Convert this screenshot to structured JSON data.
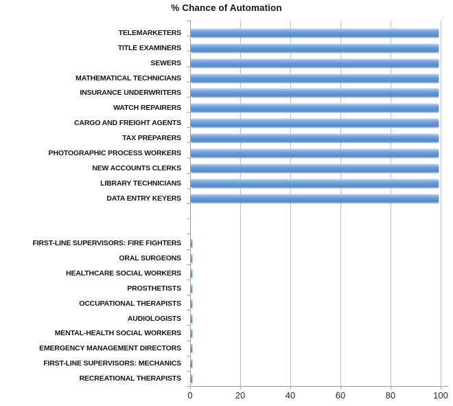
{
  "chart_data": {
    "type": "bar",
    "orientation": "horizontal",
    "title": "% Chance of Automation",
    "xlabel": "",
    "ylabel": "",
    "xlim": [
      0,
      100
    ],
    "xticks": [
      0,
      20,
      40,
      60,
      80,
      100
    ],
    "grid": "vertical-gridlines",
    "legend": "none",
    "gap_rows_between_groups": 2,
    "groups": [
      {
        "name": "high-automation-risk",
        "categories": [
          "TELEMARKETERS",
          "TITLE EXAMINERS",
          "SEWERS",
          "MATHEMATICAL TECHNICIANS",
          "INSURANCE UNDERWRITERS",
          "WATCH REPAIRERS",
          "CARGO AND FREIGHT AGENTS",
          "TAX PREPARERS",
          "PHOTOGRAPHIC PROCESS WORKERS",
          "NEW ACCOUNTS CLERKS",
          "LIBRARY TECHNICIANS",
          "DATA ENTRY KEYERS"
        ],
        "values": [
          99,
          99,
          99,
          99,
          99,
          99,
          99,
          99,
          99,
          99,
          99,
          99
        ]
      },
      {
        "name": "low-automation-risk",
        "categories": [
          "FIRST-LINE SUPERVISORS: FIRE FIGHTERS",
          "ORAL SURGEONS",
          "HEALTHCARE SOCIAL WORKERS",
          "PROSTHETISTS",
          "OCCUPATIONAL THERAPISTS",
          "AUDIOLOGISTS",
          "MENTAL-HEALTH SOCIAL WORKERS",
          "EMERGENCY MANAGEMENT DIRECTORS",
          "FIRST-LINE SUPERVISORS: MECHANICS",
          "RECREATIONAL THERAPISTS"
        ],
        "values": [
          0.4,
          0.4,
          0.4,
          0.4,
          0.4,
          0.4,
          0.4,
          0.4,
          0.4,
          0.4
        ]
      }
    ],
    "colors": {
      "bar": "#6096d6",
      "gridline": "#bfbdbd",
      "axis_line": "#9d9b9b",
      "text": "#171717"
    }
  }
}
